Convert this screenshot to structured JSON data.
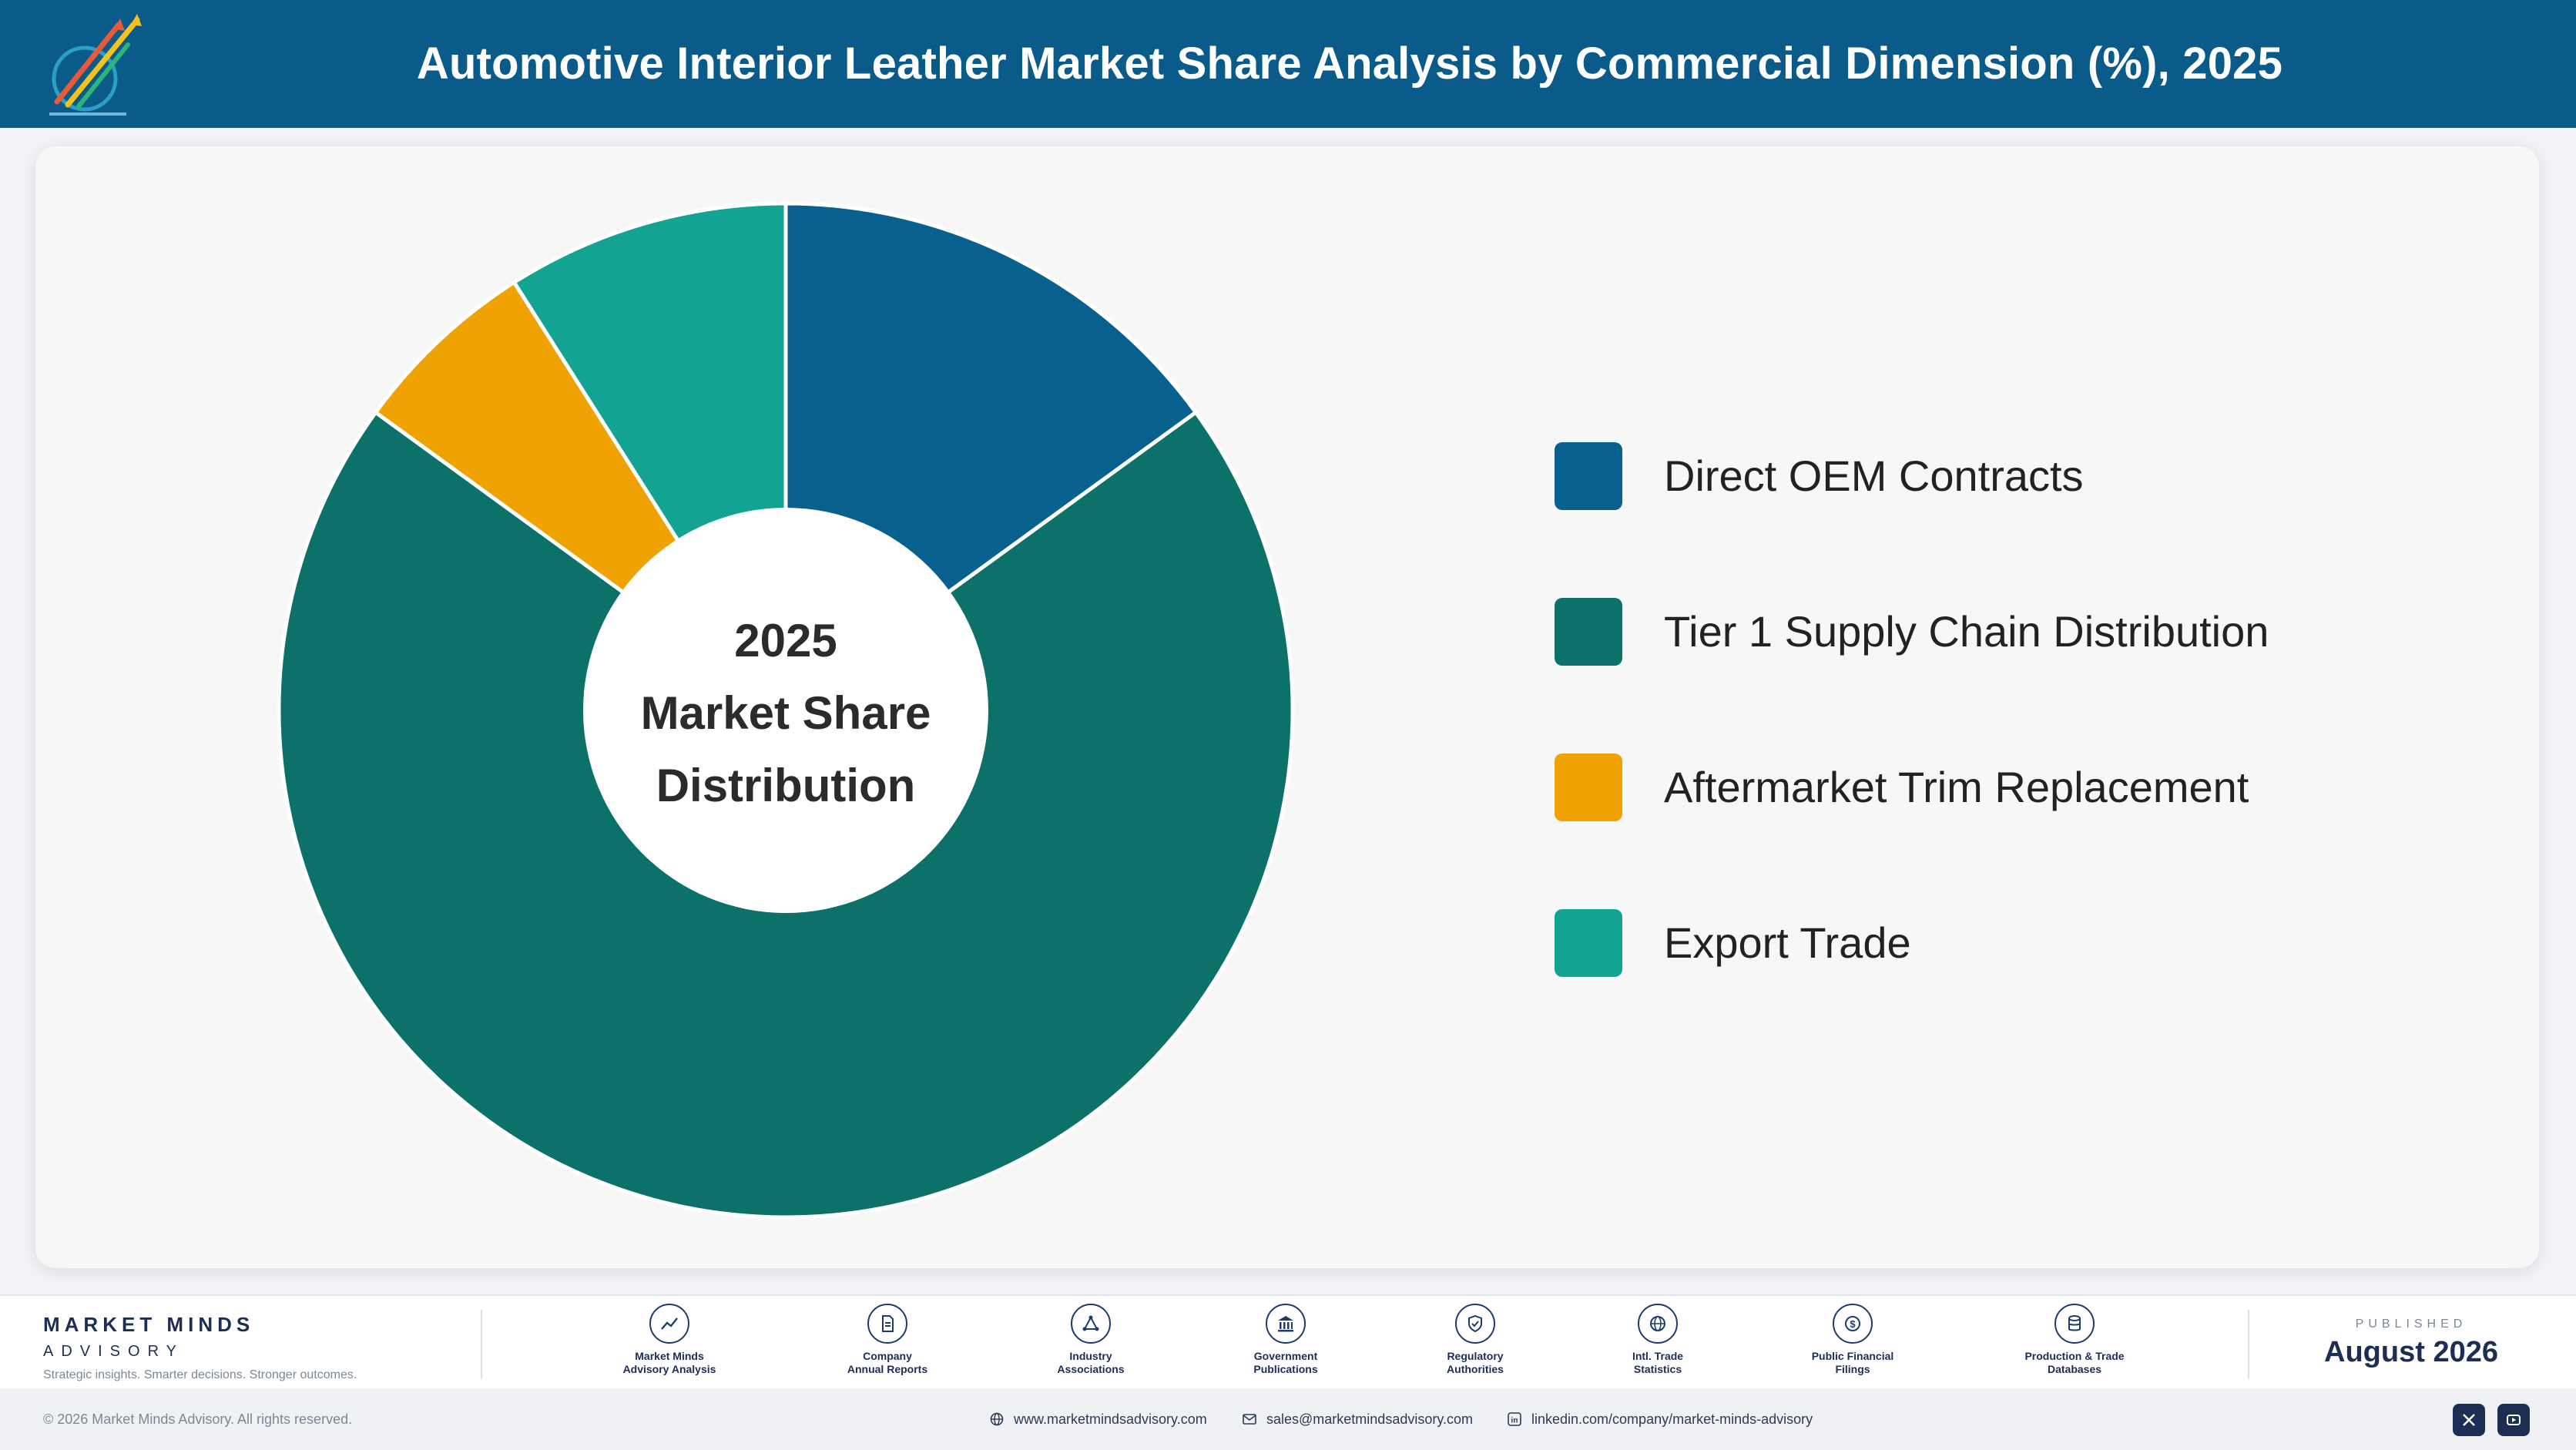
{
  "header": {
    "title": "Automotive Interior Leather Market Share Analysis by Commercial Dimension (%), 2025"
  },
  "colors": {
    "header_bg": "#0a5a8a",
    "direct_oem": "#08608f",
    "tier1": "#0b7169",
    "aftermarket": "#f0a202",
    "export": "#13a393"
  },
  "chart_data": {
    "type": "pie",
    "title": "Automotive Interior Leather Market Share Analysis by Commercial Dimension (%), 2025",
    "center_label": [
      "2025",
      "Market Share",
      "Distribution"
    ],
    "categories": [
      "Direct OEM Contracts",
      "Tier 1 Supply Chain Distribution",
      "Aftermarket Trim Replacement",
      "Export Trade"
    ],
    "values": [
      15,
      70,
      6,
      9
    ],
    "colors": [
      "#08608f",
      "#0b7169",
      "#f0a202",
      "#13a393"
    ],
    "donut": true,
    "legend_position": "right"
  },
  "footer": {
    "brand_name": "MARKET MINDS",
    "brand_sub": "ADVISORY",
    "tagline": "Strategic insights. Smarter decisions. Stronger outcomes.",
    "sources": [
      {
        "line1": "Market Minds",
        "line2": "Advisory Analysis",
        "icon": "trend-chart-icon"
      },
      {
        "line1": "Company",
        "line2": "Annual Reports",
        "icon": "document-icon"
      },
      {
        "line1": "Industry",
        "line2": "Associations",
        "icon": "network-icon"
      },
      {
        "line1": "Government",
        "line2": "Publications",
        "icon": "government-building-icon"
      },
      {
        "line1": "Regulatory",
        "line2": "Authorities",
        "icon": "shield-check-icon"
      },
      {
        "line1": "Intl. Trade",
        "line2": "Statistics",
        "icon": "globe-icon"
      },
      {
        "line1": "Public Financial",
        "line2": "Filings",
        "icon": "dollar-coin-icon"
      },
      {
        "line1": "Production & Trade",
        "line2": "Databases",
        "icon": "database-icon"
      }
    ],
    "published_label": "PUBLISHED",
    "published_date": "August 2026"
  },
  "bottombar": {
    "copyright": "© 2026 Market Minds Advisory. All rights reserved.",
    "website": "www.marketmindsadvisory.com",
    "email": "sales@marketmindsadvisory.com",
    "linkedin": "linkedin.com/company/market-minds-advisory"
  }
}
